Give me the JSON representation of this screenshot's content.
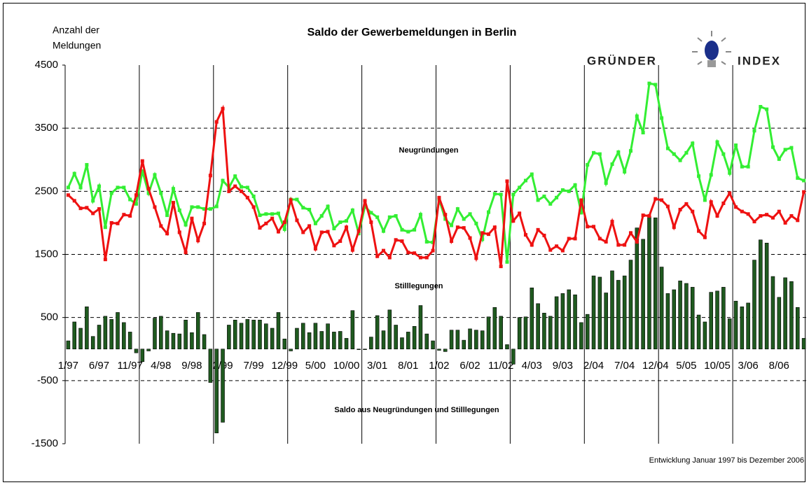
{
  "chart_data": {
    "type": "line",
    "title": "Saldo der Gewerbemeldungen in Berlin",
    "y_label": [
      "Anzahl der",
      "Meldungen"
    ],
    "note": "Entwicklung Januar 1997 bis Dezember 2006",
    "categories": [
      "1/97",
      null,
      null,
      null,
      null,
      "6/97",
      null,
      null,
      null,
      null,
      "11/97",
      null,
      null,
      null,
      null,
      "4/98",
      null,
      null,
      null,
      null,
      "9/98",
      null,
      null,
      null,
      null,
      "2/99",
      null,
      null,
      null,
      null,
      "7/99",
      null,
      null,
      null,
      null,
      "12/99",
      null,
      null,
      null,
      null,
      "5/00",
      null,
      null,
      null,
      null,
      "10/00",
      null,
      null,
      null,
      null,
      "3/01",
      null,
      null,
      null,
      null,
      "8/01",
      null,
      null,
      null,
      null,
      "1/02",
      null,
      null,
      null,
      null,
      "6/02",
      null,
      null,
      null,
      null,
      "11/02",
      null,
      null,
      null,
      null,
      "4/03",
      null,
      null,
      null,
      null,
      "9/03",
      null,
      null,
      null,
      null,
      "2/04",
      null,
      null,
      null,
      null,
      "7/04",
      null,
      null,
      null,
      null,
      "12/04",
      null,
      null,
      null,
      null,
      "5/05",
      null,
      null,
      null,
      null,
      "10/05",
      null,
      null,
      null,
      null,
      "3/06",
      null,
      null,
      null,
      null,
      "8/06",
      null,
      null,
      null,
      null
    ],
    "ylim": [
      -1500,
      4500
    ],
    "yticks": [
      4500,
      3500,
      2500,
      1500,
      500,
      -500,
      -1500
    ],
    "grid": true,
    "series": [
      {
        "name": "Neugründungen",
        "type": "line",
        "color": "#33ee33",
        "values": [
          2560,
          2780,
          2560,
          2920,
          2350,
          2580,
          1930,
          2470,
          2560,
          2560,
          2370,
          2300,
          2820,
          2470,
          2760,
          2470,
          2120,
          2540,
          2200,
          1970,
          2250,
          2250,
          2220,
          2220,
          2260,
          2670,
          2560,
          2740,
          2570,
          2560,
          2420,
          2120,
          2140,
          2140,
          2150,
          1900,
          2370,
          2370,
          2240,
          2210,
          1990,
          2110,
          2260,
          1910,
          2010,
          2030,
          2200,
          1830,
          2260,
          2160,
          2090,
          1870,
          2090,
          2110,
          1890,
          1860,
          1890,
          2130,
          1700,
          1690,
          2370,
          2060,
          1960,
          2220,
          2060,
          2140,
          1990,
          1740,
          2170,
          2460,
          2450,
          1380,
          2450,
          2560,
          2670,
          2770,
          2360,
          2420,
          2300,
          2400,
          2520,
          2500,
          2600,
          2160,
          2920,
          3110,
          3090,
          2630,
          2930,
          3120,
          2810,
          3140,
          3690,
          3430,
          4210,
          4190,
          3660,
          3180,
          3090,
          2990,
          3110,
          3260,
          2740,
          2360,
          2760,
          3280,
          3090,
          2790,
          3230,
          2890,
          2890,
          3460,
          3840,
          3800,
          3200,
          3010,
          3160,
          3190,
          2710,
          2670
        ]
      },
      {
        "name": "Stilllegungen",
        "type": "line",
        "color": "#ee1111",
        "values": [
          2440,
          2350,
          2230,
          2240,
          2150,
          2220,
          1420,
          2000,
          1990,
          2130,
          2110,
          2440,
          2980,
          2540,
          2250,
          1950,
          1830,
          2320,
          1850,
          1530,
          2070,
          1720,
          1990,
          2750,
          3600,
          3810,
          2500,
          2580,
          2500,
          2400,
          2250,
          1920,
          1990,
          2070,
          1860,
          2010,
          2360,
          2040,
          1850,
          1950,
          1590,
          1850,
          1860,
          1640,
          1710,
          1930,
          1570,
          1870,
          2350,
          2010,
          1470,
          1560,
          1450,
          1730,
          1710,
          1530,
          1520,
          1450,
          1450,
          1560,
          2400,
          2130,
          1710,
          1930,
          1920,
          1760,
          1440,
          1840,
          1820,
          1930,
          1310,
          2660,
          2030,
          2150,
          1810,
          1650,
          1890,
          1800,
          1570,
          1630,
          1560,
          1750,
          1750,
          2360,
          1940,
          1940,
          1750,
          1700,
          2020,
          1650,
          1650,
          1840,
          1700,
          2120,
          2110,
          2380,
          2360,
          2260,
          1930,
          2210,
          2300,
          2180,
          1870,
          1770,
          2330,
          2110,
          2310,
          2470,
          2250,
          2180,
          2140,
          2020,
          2110,
          2130,
          2080,
          2180,
          2000,
          2110,
          2040,
          2490
        ]
      },
      {
        "name": "Saldo aus Neugründungen und Stilllegungen",
        "type": "bar",
        "color": "#1f5a1f",
        "values": [
          130,
          430,
          330,
          670,
          200,
          380,
          520,
          470,
          580,
          420,
          270,
          -60,
          -200,
          -30,
          490,
          520,
          290,
          250,
          240,
          460,
          260,
          580,
          230,
          -530,
          -1330,
          -1160,
          380,
          460,
          410,
          470,
          460,
          460,
          400,
          330,
          580,
          160,
          -30,
          330,
          410,
          260,
          410,
          280,
          400,
          270,
          280,
          170,
          610,
          -10,
          -10,
          190,
          530,
          290,
          620,
          380,
          180,
          270,
          360,
          690,
          240,
          130,
          -20,
          -40,
          300,
          300,
          140,
          320,
          300,
          290,
          510,
          660,
          520,
          70,
          -240,
          500,
          510,
          970,
          720,
          570,
          520,
          830,
          880,
          940,
          860,
          420,
          550,
          1160,
          1140,
          890,
          1240,
          1090,
          1160,
          1410,
          1920,
          1740,
          2100,
          2080,
          1300,
          880,
          940,
          1080,
          1040,
          980,
          540,
          430,
          900,
          920,
          980,
          480,
          760,
          670,
          730,
          1410,
          1730,
          1680,
          1150,
          820,
          1130,
          1070,
          660,
          170
        ]
      }
    ]
  },
  "logo": {
    "left": "GRÜNDER",
    "right": "INDEX"
  }
}
